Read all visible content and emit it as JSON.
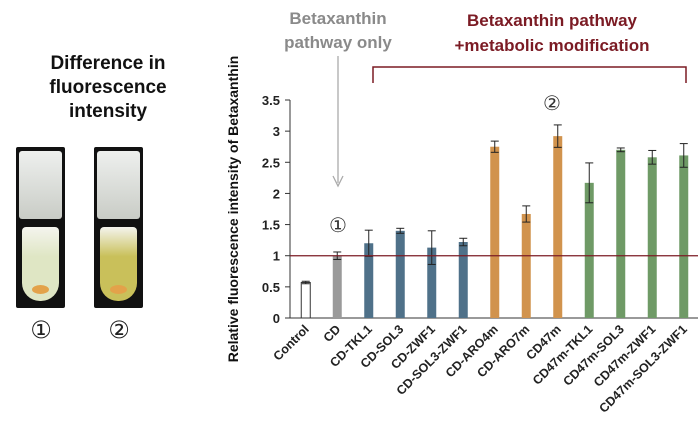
{
  "left_panel": {
    "title_lines": [
      "Difference in",
      "fluorescence",
      "intensity"
    ],
    "tubes": [
      {
        "label": "①",
        "liquid_color": "#dfe6c4"
      },
      {
        "label": "②",
        "liquid_color": "#c9c05a"
      }
    ]
  },
  "annotations": {
    "pathway_only": [
      "Betaxanthin",
      "pathway only"
    ],
    "pathway_modification": [
      "Betaxanthin pathway",
      "+metabolic modification"
    ],
    "marker_1": "①",
    "marker_2": "②"
  },
  "colors": {
    "gray_text": "#8a8a8a",
    "dark_red": "#7b1b24",
    "control": "#ffffff",
    "cd": "#9a9a9a",
    "blue": "#4f7189",
    "orange": "#d1934d",
    "green": "#6f9a66"
  },
  "chart_data": {
    "type": "bar",
    "ylabel": "Relative fluorescence intensity of Betaxanthin",
    "ylim": [
      0,
      3.5
    ],
    "yticks": [
      0,
      0.5,
      1,
      1.5,
      2,
      2.5,
      3,
      3.5
    ],
    "reference_line": 1,
    "categories": [
      "Control",
      "CD",
      "CD-TKL1",
      "CD-SOL3",
      "CD-ZWF1",
      "CD-SOL3-ZWF1",
      "CD-ARO4m",
      "CD-ARO7m",
      "CD47m",
      "CD47m-TKL1",
      "CD47m-SOL3",
      "CD47m-ZWF1",
      "CD47m-SOL3-ZWF1"
    ],
    "values": [
      0.57,
      1.0,
      1.2,
      1.4,
      1.13,
      1.22,
      2.75,
      1.67,
      2.92,
      2.17,
      2.7,
      2.58,
      2.61
    ],
    "errors": [
      0.02,
      0.06,
      0.21,
      0.04,
      0.27,
      0.06,
      0.09,
      0.13,
      0.18,
      0.32,
      0.03,
      0.11,
      0.19
    ],
    "bar_colors": [
      "#ffffff",
      "#9a9a9a",
      "#4f7189",
      "#4f7189",
      "#4f7189",
      "#4f7189",
      "#d1934d",
      "#d1934d",
      "#d1934d",
      "#6f9a66",
      "#6f9a66",
      "#6f9a66",
      "#6f9a66"
    ]
  }
}
